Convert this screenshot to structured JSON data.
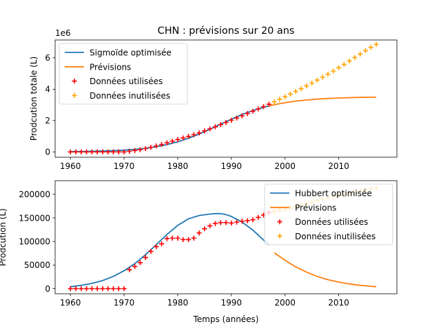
{
  "figure": {
    "title": "CHN : prévisions sur 20 ans"
  },
  "colors": {
    "fit": "#1f77b4",
    "forecast": "#ff7f0e",
    "used": "#ff0000",
    "unused": "#ffa500"
  },
  "chart_data": [
    {
      "type": "line",
      "title": "CHN : prévisions sur 20 ans",
      "ylabel": "Prodcution totale (L)",
      "xlabel": "",
      "y_offset_label": "1e6",
      "xlim": [
        1957.15,
        2020.85
      ],
      "ylim": [
        -0.34,
        7.14
      ],
      "x_ticks": [
        1960,
        1970,
        1980,
        1990,
        2000,
        2010
      ],
      "y_ticks": [
        0,
        2,
        4,
        6
      ],
      "legend_position": "upper left",
      "legend": [
        "Sigmoïde optimisée",
        "Prévisions",
        "Données utilisées",
        "Données inutilisées"
      ],
      "series": [
        {
          "name": "Sigmoïde optimisée",
          "kind": "line",
          "color": "#1f77b4",
          "x": [
            1960,
            1962,
            1964,
            1966,
            1968,
            1970,
            1972,
            1974,
            1976,
            1978,
            1980,
            1982,
            1984,
            1986,
            1988,
            1990,
            1992,
            1994,
            1996,
            1997
          ],
          "y": [
            0.02,
            0.03,
            0.04,
            0.06,
            0.08,
            0.11,
            0.16,
            0.23,
            0.33,
            0.46,
            0.64,
            0.87,
            1.14,
            1.45,
            1.77,
            2.09,
            2.39,
            2.64,
            2.85,
            2.93
          ]
        },
        {
          "name": "Prévisions",
          "kind": "line",
          "color": "#ff7f0e",
          "x": [
            1997,
            1998,
            2000,
            2002,
            2004,
            2006,
            2008,
            2010,
            2012,
            2014,
            2016,
            2017
          ],
          "y": [
            2.93,
            3.01,
            3.14,
            3.24,
            3.31,
            3.37,
            3.41,
            3.44,
            3.46,
            3.48,
            3.49,
            3.49
          ]
        },
        {
          "name": "Données utilisées",
          "kind": "scatter",
          "marker": "+",
          "color": "#ff0000",
          "x": [
            1960,
            1961,
            1962,
            1963,
            1964,
            1965,
            1966,
            1967,
            1968,
            1969,
            1970,
            1971,
            1972,
            1973,
            1974,
            1975,
            1976,
            1977,
            1978,
            1979,
            1980,
            1981,
            1982,
            1983,
            1984,
            1985,
            1986,
            1987,
            1988,
            1989,
            1990,
            1991,
            1992,
            1993,
            1994,
            1995,
            1996,
            1997
          ],
          "y": [
            0,
            0,
            0,
            0,
            0,
            0,
            0,
            0,
            0,
            0,
            0,
            0.04,
            0.09,
            0.14,
            0.21,
            0.29,
            0.38,
            0.47,
            0.58,
            0.68,
            0.79,
            0.89,
            0.99,
            1.1,
            1.21,
            1.34,
            1.47,
            1.6,
            1.74,
            1.88,
            2.02,
            2.16,
            2.3,
            2.45,
            2.59,
            2.74,
            2.89,
            3.04
          ]
        },
        {
          "name": "Données inutilisées",
          "kind": "scatter",
          "marker": "+",
          "color": "#ffa500",
          "x": [
            1998,
            1999,
            2000,
            2001,
            2002,
            2003,
            2004,
            2005,
            2006,
            2007,
            2008,
            2009,
            2010,
            2011,
            2012,
            2013,
            2014,
            2015,
            2016,
            2017
          ],
          "y": [
            3.2,
            3.36,
            3.52,
            3.69,
            3.86,
            4.03,
            4.21,
            4.39,
            4.58,
            4.77,
            4.96,
            5.16,
            5.37,
            5.58,
            5.8,
            6.02,
            6.24,
            6.46,
            6.67,
            6.86
          ]
        }
      ]
    },
    {
      "type": "line",
      "title": "",
      "ylabel": "Prodcution (L)",
      "xlabel": "Temps (années)",
      "xlim": [
        1957.15,
        2020.85
      ],
      "ylim": [
        -10900,
        228900
      ],
      "x_ticks": [
        1960,
        1970,
        1980,
        1990,
        2000,
        2010
      ],
      "y_ticks": [
        0,
        50000,
        100000,
        150000,
        200000
      ],
      "legend_position": "upper right",
      "legend": [
        "Hubbert optimisée",
        "Prévisions",
        "Données utilisées",
        "Données inutilisées"
      ],
      "series": [
        {
          "name": "Hubbert optimisée",
          "kind": "line",
          "color": "#1f77b4",
          "x": [
            1960,
            1962,
            1964,
            1966,
            1968,
            1970,
            1972,
            1974,
            1976,
            1978,
            1980,
            1982,
            1984,
            1986,
            1987,
            1988,
            1989,
            1990,
            1992,
            1994,
            1996,
            1997
          ],
          "y": [
            4000,
            7000,
            11000,
            17000,
            26000,
            38000,
            53000,
            72000,
            93000,
            115000,
            134000,
            148000,
            155000,
            158000,
            159000,
            159000,
            157000,
            153000,
            141000,
            124000,
            103000,
            93000
          ]
        },
        {
          "name": "Prévisions",
          "kind": "line",
          "color": "#ff7f0e",
          "x": [
            1998,
            2000,
            2002,
            2004,
            2006,
            2008,
            2010,
            2012,
            2014,
            2016,
            2017
          ],
          "y": [
            76000,
            60000,
            46000,
            35000,
            26000,
            19000,
            14000,
            10000,
            7000,
            5000,
            4000
          ]
        },
        {
          "name": "Données utilisées",
          "kind": "scatter",
          "marker": "+",
          "color": "#ff0000",
          "x": [
            1960,
            1961,
            1962,
            1963,
            1964,
            1965,
            1966,
            1967,
            1968,
            1969,
            1970,
            1971,
            1972,
            1973,
            1974,
            1975,
            1976,
            1977,
            1978,
            1979,
            1980,
            1981,
            1982,
            1983,
            1984,
            1985,
            1986,
            1987,
            1988,
            1989,
            1990,
            1991,
            1992,
            1993,
            1994,
            1995,
            1996,
            1997
          ],
          "y": [
            0,
            0,
            0,
            0,
            0,
            0,
            0,
            0,
            0,
            0,
            0,
            40000,
            47000,
            55000,
            66000,
            79000,
            89000,
            95000,
            106000,
            107000,
            107000,
            104000,
            104000,
            107000,
            118000,
            127000,
            133000,
            138000,
            140000,
            140000,
            139000,
            141000,
            143000,
            144000,
            146000,
            151000,
            156000,
            161000
          ]
        },
        {
          "name": "Données inutilisées",
          "kind": "scatter",
          "marker": "+",
          "color": "#ffa500",
          "x": [
            1998,
            1999,
            2000,
            2001,
            2002,
            2003,
            2004,
            2005,
            2006,
            2007,
            2008,
            2009,
            2010,
            2011,
            2012,
            2013,
            2014,
            2015,
            2016,
            2017
          ],
          "y": [
            163000,
            166000,
            168000,
            171000,
            174000,
            177000,
            180000,
            183000,
            187000,
            190000,
            192000,
            195000,
            197000,
            200000,
            203000,
            205000,
            208000,
            210000,
            212000,
            213000
          ]
        }
      ]
    }
  ]
}
